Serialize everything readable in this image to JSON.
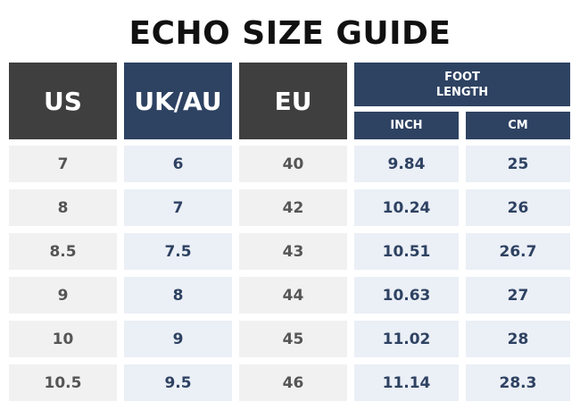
{
  "title": "ECHO SIZE GUIDE",
  "headers": {
    "us": "US",
    "uk_au": "UK/AU",
    "eu": "EU",
    "foot_length_line1": "FOOT",
    "foot_length_line2": "LENGTH",
    "inch": "INCH",
    "cm": "CM"
  },
  "rows": [
    {
      "us": "7",
      "uk_au": "6",
      "eu": "40",
      "inch": "9.84",
      "cm": "25"
    },
    {
      "us": "8",
      "uk_au": "7",
      "eu": "42",
      "inch": "10.24",
      "cm": "26"
    },
    {
      "us": "8.5",
      "uk_au": "7.5",
      "eu": "43",
      "inch": "10.51",
      "cm": "26.7"
    },
    {
      "us": "9",
      "uk_au": "8",
      "eu": "44",
      "inch": "10.63",
      "cm": "27"
    },
    {
      "us": "10",
      "uk_au": "9",
      "eu": "45",
      "inch": "11.02",
      "cm": "28"
    },
    {
      "us": "10.5",
      "uk_au": "9.5",
      "eu": "46",
      "inch": "11.14",
      "cm": "28.3"
    }
  ],
  "colors": {
    "dark_header": "#3f3f3f",
    "navy_header": "#2e4262",
    "grey_cell": "#f1f1f1",
    "blue_cell": "#ebeff6"
  }
}
